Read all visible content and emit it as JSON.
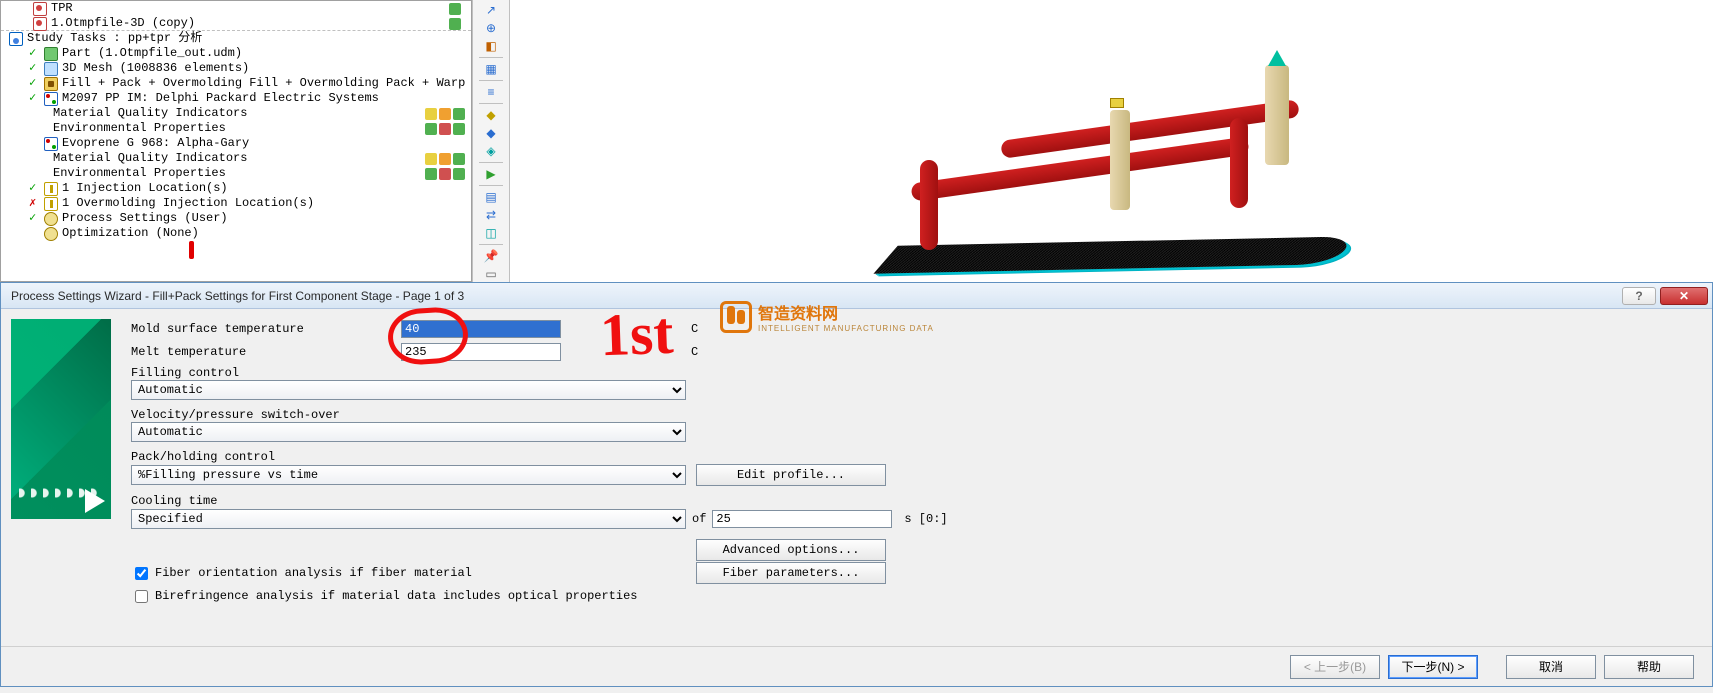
{
  "tree": {
    "top": [
      {
        "icon": "ic-doc",
        "label": "TPR",
        "right": [
          "mi-g"
        ]
      },
      {
        "icon": "ic-doc",
        "label": "1.Otmpfile-3D (copy)",
        "right": [
          "mi-g"
        ]
      }
    ],
    "study_title": "Study Tasks : pp+tpr 分析",
    "items": [
      {
        "check": "green",
        "icon": "ic-part",
        "label": "Part (1.Otmpfile_out.udm)"
      },
      {
        "check": "green",
        "icon": "ic-mesh",
        "label": "3D Mesh (1008836 elements)"
      },
      {
        "check": "green",
        "icon": "ic-proc",
        "label": "Fill + Pack + Overmolding Fill + Overmolding Pack + Warp"
      },
      {
        "check": "green",
        "icon": "ic-mat",
        "label": "M2097 PP IM: Delphi Packard Electric Systems"
      },
      {
        "sub": true,
        "label": "Material Quality Indicators",
        "right": [
          "mi-y",
          "mi-o",
          "mi-g"
        ]
      },
      {
        "sub": true,
        "label": "Environmental Properties",
        "right": [
          "mi-g",
          "mi-r",
          "mi-g"
        ]
      },
      {
        "check": "none",
        "icon": "ic-mat",
        "label": "Evoprene G 968: Alpha-Gary"
      },
      {
        "sub": true,
        "label": "Material Quality Indicators",
        "right": [
          "mi-y",
          "mi-o",
          "mi-g"
        ]
      },
      {
        "sub": true,
        "label": "Environmental Properties",
        "right": [
          "mi-g",
          "mi-r",
          "mi-g"
        ]
      },
      {
        "check": "green",
        "icon": "ic-inj",
        "label": "1 Injection Location(s)"
      },
      {
        "check": "red",
        "icon": "ic-inj",
        "label": "1 Overmolding Injection Location(s)"
      },
      {
        "check": "green",
        "icon": "ic-gear",
        "label": "Process Settings (User)"
      },
      {
        "check": "none",
        "icon": "ic-gear",
        "label": "Optimization (None)"
      }
    ]
  },
  "vtoolbar": [
    "arrow-icon",
    "plus-cursor-icon",
    "palette-icon",
    "divider",
    "grid-icon",
    "divider",
    "db-icon",
    "divider",
    "cube-y-icon",
    "cube-b-icon",
    "cubes-icon",
    "divider",
    "play-icon",
    "divider",
    "sheet-icon",
    "exchange-icon",
    "stats-icon",
    "divider",
    "pushpin-icon",
    "doc-icon"
  ],
  "dialog": {
    "title": "Process Settings Wizard - Fill+Pack Settings for First Component Stage - Page 1 of 3",
    "mold_label": "Mold surface temperature",
    "mold_value": "40",
    "mold_unit": "C",
    "melt_label": "Melt temperature",
    "melt_value": "235",
    "melt_unit": "C",
    "fill_ctrl_label": "Filling control",
    "fill_ctrl_value": "Automatic",
    "vp_label": "Velocity/pressure switch-over",
    "vp_value": "Automatic",
    "pack_label": "Pack/holding control",
    "pack_value": "%Filling pressure vs time",
    "edit_profile_btn": "Edit profile...",
    "cool_label": "Cooling time",
    "cool_value": "Specified",
    "cool_of": "of",
    "cool_num": "25",
    "cool_unit": "s [0:]",
    "adv_btn": "Advanced options...",
    "fiber_chk": "Fiber orientation analysis if fiber material",
    "fiber_btn": "Fiber parameters...",
    "biref_chk": "Birefringence analysis if material data includes optical properties",
    "footer": {
      "back": "< 上一步(B)",
      "next": "下一步(N) >",
      "cancel": "取消",
      "help": "帮助"
    }
  },
  "watermark": {
    "name": "智造资料网",
    "sub": "INTELLIGENT MANUFACTURING DATA"
  },
  "handwriting": "1st",
  "colors": {
    "accent": "#2a6dd0",
    "red_hand": "#f01010",
    "mesh_dark": "#101010",
    "mesh_side": "#00c0d0",
    "pipe_red": "#c01818",
    "sprue": "#d8c890",
    "cone": "#00c0a0"
  }
}
